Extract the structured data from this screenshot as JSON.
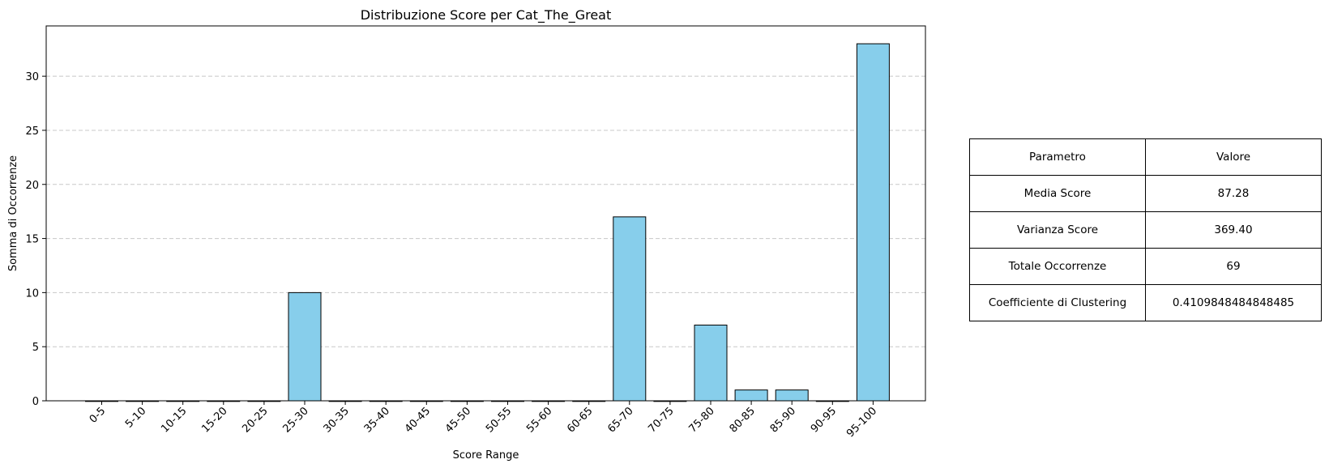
{
  "chart_data": {
    "type": "bar",
    "title": "Distribuzione Score per Cat_The_Great",
    "xlabel": "Score Range",
    "ylabel": "Somma di Occorrenze",
    "categories": [
      "0-5",
      "5-10",
      "10-15",
      "15-20",
      "20-25",
      "25-30",
      "30-35",
      "35-40",
      "40-45",
      "45-50",
      "50-55",
      "55-60",
      "60-65",
      "65-70",
      "70-75",
      "75-80",
      "80-85",
      "85-90",
      "90-95",
      "95-100"
    ],
    "values": [
      0,
      0,
      0,
      0,
      0,
      10,
      0,
      0,
      0,
      0,
      0,
      0,
      0,
      17,
      0,
      7,
      1,
      1,
      0,
      33
    ],
    "ylim": [
      0,
      34.65
    ],
    "yticks": [
      0,
      5,
      10,
      15,
      20,
      25,
      30
    ],
    "grid": "y-dashed",
    "bar_color": "#87ceeb",
    "edge_color": "#000000"
  },
  "table": {
    "header": [
      "Parametro",
      "Valore"
    ],
    "rows": [
      [
        "Media Score",
        "87.28"
      ],
      [
        "Varianza Score",
        "369.40"
      ],
      [
        "Totale Occorrenze",
        "69"
      ],
      [
        "Coefficiente di Clustering",
        "0.4109848484848485"
      ]
    ]
  }
}
